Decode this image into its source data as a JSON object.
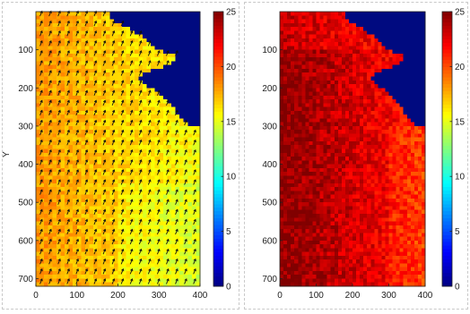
{
  "chart_data": [
    {
      "type": "heatmap",
      "ylabel": "Y",
      "xlim": [
        0,
        400
      ],
      "ylim": [
        0,
        720
      ],
      "yaxis_reversed": true,
      "x_ticks": [
        "0",
        "100",
        "200",
        "300",
        "400"
      ],
      "y_ticks": [
        "100",
        "200",
        "300",
        "400",
        "500",
        "600",
        "700"
      ],
      "colorbar": {
        "min": 0,
        "max": 25,
        "ticks": [
          "0",
          "5",
          "10",
          "15",
          "20",
          "25"
        ],
        "colormap": "jet"
      },
      "land_color": "#000a80",
      "overlay": "wind vector arrows pointing up-right (NNE)",
      "field_range": [
        12,
        20
      ]
    },
    {
      "type": "heatmap",
      "xlim": [
        0,
        400
      ],
      "ylim": [
        0,
        720
      ],
      "yaxis_reversed": true,
      "x_ticks": [
        "0",
        "100",
        "200",
        "300",
        "400"
      ],
      "y_ticks": [
        "100",
        "200",
        "300",
        "400",
        "500",
        "600",
        "700"
      ],
      "colorbar": {
        "min": 0,
        "max": 25,
        "ticks": [
          "0",
          "5",
          "10",
          "15",
          "20",
          "25"
        ],
        "colormap": "jet"
      },
      "land_color": "#000a80",
      "field_range": [
        17,
        25
      ]
    }
  ]
}
